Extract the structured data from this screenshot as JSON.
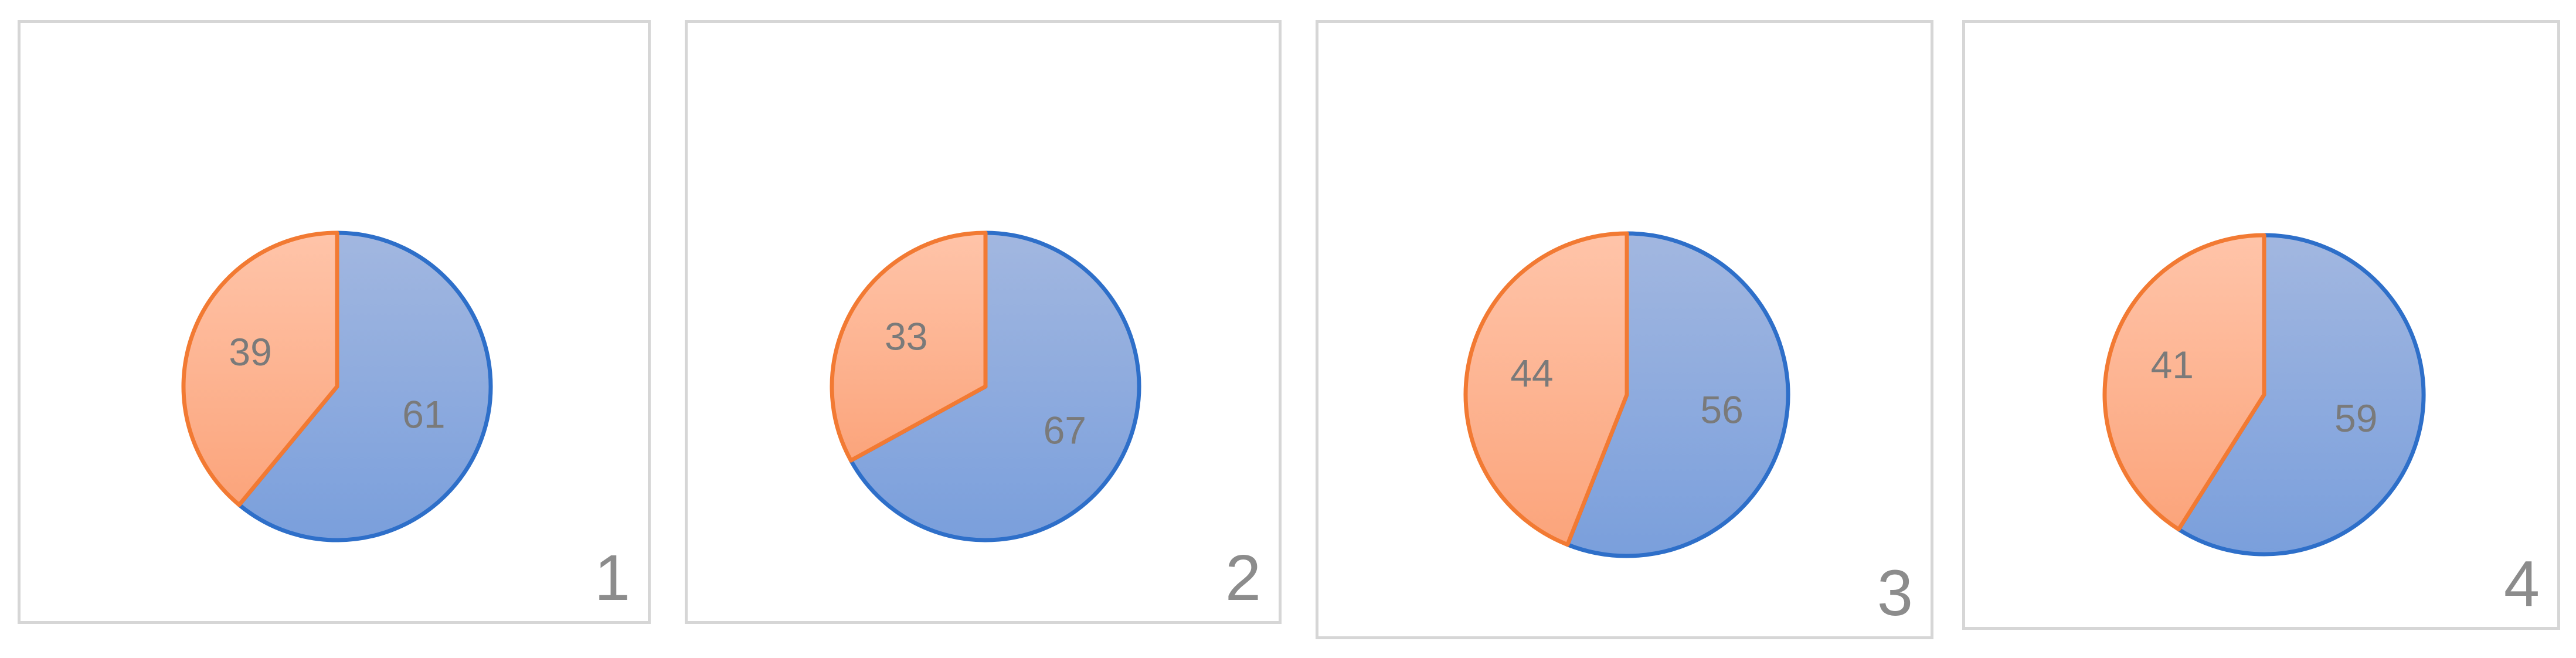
{
  "colors": {
    "series_a_stroke": "#2e6fc9",
    "series_a_fill_top": "#a2b7e0",
    "series_a_fill_bottom": "#7a9fdc",
    "series_b_stroke": "#f27a33",
    "series_b_fill_top": "#ffc4a9",
    "series_b_fill_bottom": "#fba47b"
  },
  "chart_data": [
    {
      "type": "pie",
      "panel_label": "1",
      "values": [
        61,
        39
      ],
      "labels": [
        "61",
        "39"
      ]
    },
    {
      "type": "pie",
      "panel_label": "2",
      "values": [
        67,
        33
      ],
      "labels": [
        "67",
        "33"
      ]
    },
    {
      "type": "pie",
      "panel_label": "3",
      "values": [
        56,
        44
      ],
      "labels": [
        "56",
        "44"
      ]
    },
    {
      "type": "pie",
      "panel_label": "4",
      "values": [
        59,
        41
      ],
      "labels": [
        "59",
        "41"
      ]
    }
  ]
}
